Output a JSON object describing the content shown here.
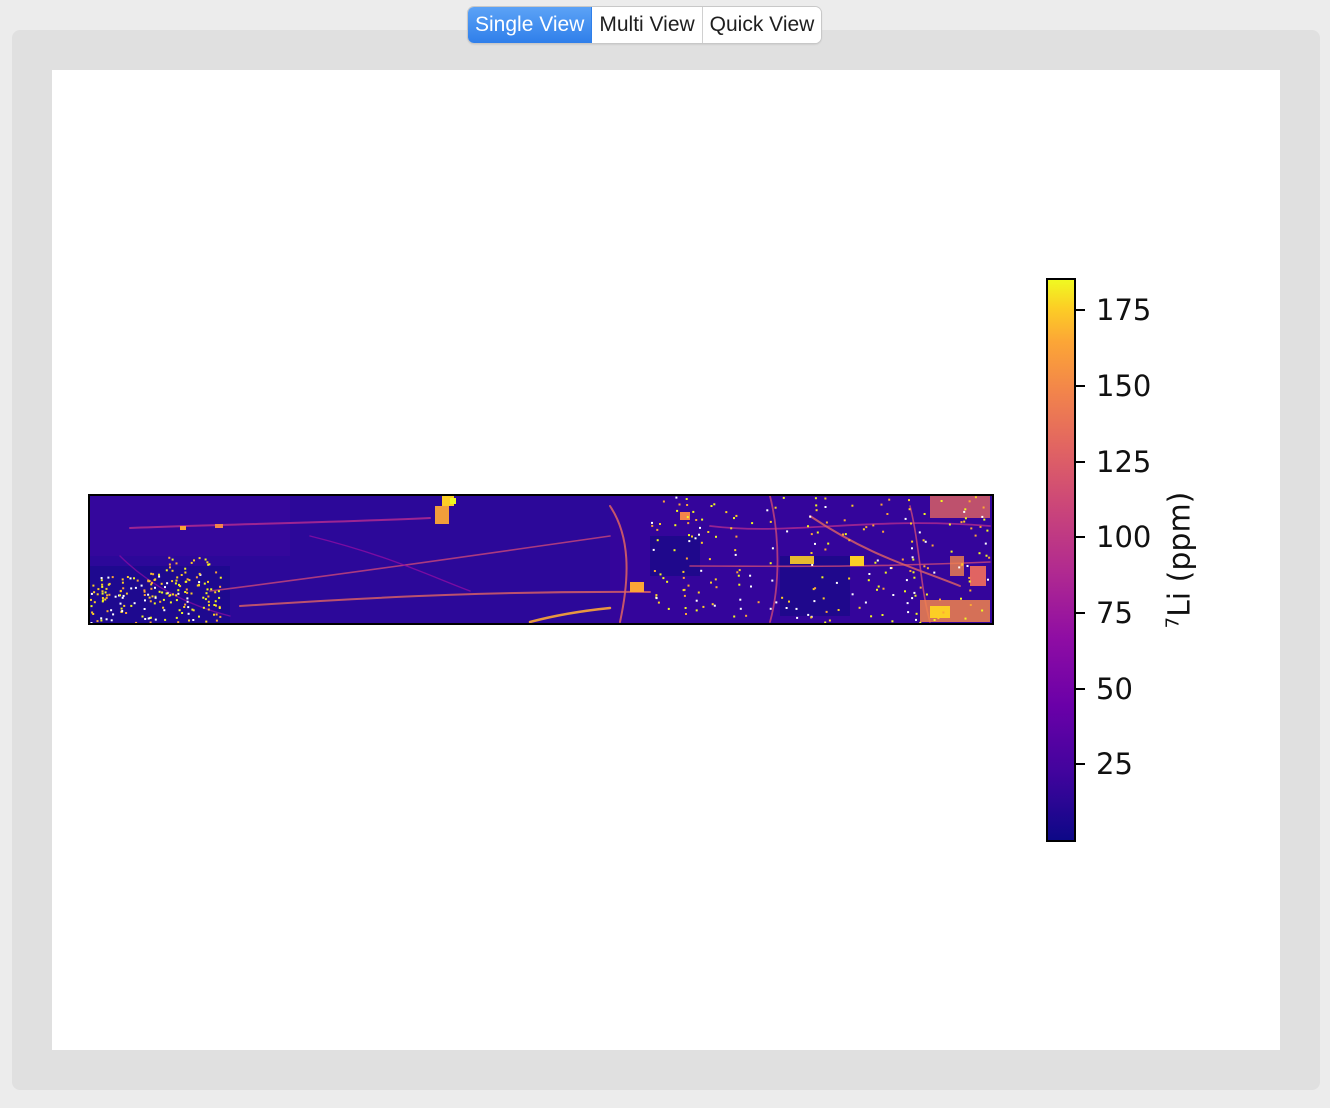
{
  "tabs": [
    {
      "label": "Single View",
      "active": true
    },
    {
      "label": "Multi View",
      "active": false
    },
    {
      "label": "Quick View",
      "active": false
    }
  ],
  "chart_data": {
    "type": "heatmap",
    "colormap": "plasma",
    "colorbar": {
      "label_superscript": "7",
      "label_text": "Li (ppm)",
      "ticks": [
        25,
        50,
        75,
        100,
        125,
        150,
        175
      ],
      "tick_labels": [
        "25",
        "50",
        "75",
        "100",
        "125",
        "150",
        "175"
      ],
      "range": [
        0,
        185
      ]
    }
  }
}
